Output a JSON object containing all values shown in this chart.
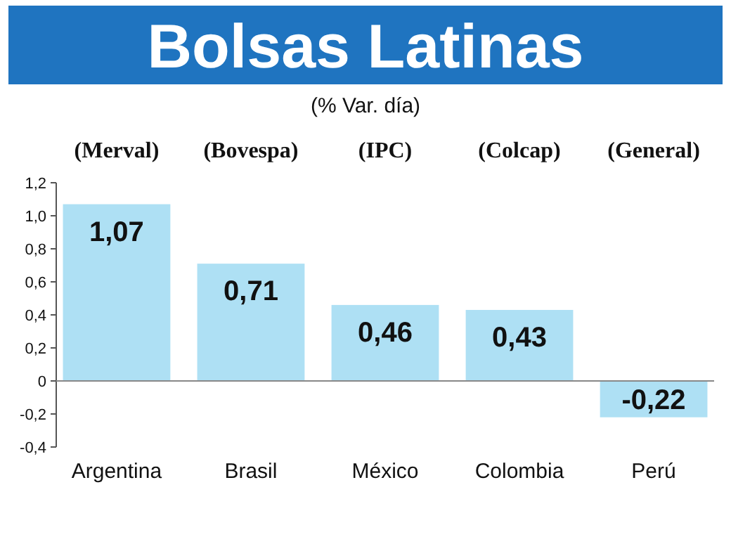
{
  "chart_data": {
    "type": "bar",
    "title": "Bolsas Latinas",
    "subtitle": "(% Var. día)",
    "categories": [
      "Argentina",
      "Brasil",
      "México",
      "Colombia",
      "Perú"
    ],
    "values": [
      1.07,
      0.71,
      0.46,
      0.43,
      -0.22
    ],
    "value_labels": [
      "1,07",
      "0,71",
      "0,46",
      "0,43",
      "-0,22"
    ],
    "color": "#aee0f4",
    "ylim": [
      -0.4,
      1.2
    ],
    "yticks": [
      {
        "value": -0.4,
        "label": "-0,4"
      },
      {
        "value": -0.2,
        "label": "-0,2"
      },
      {
        "value": 0,
        "label": "0"
      },
      {
        "value": 0.2,
        "label": "0,2"
      },
      {
        "value": 0.4,
        "label": "0,4"
      },
      {
        "value": 0.6,
        "label": "0,6"
      },
      {
        "value": 0.8,
        "label": "0,8"
      },
      {
        "value": 1,
        "label": "1,0"
      },
      {
        "value": 1.2,
        "label": "1,2"
      }
    ],
    "annotations": [
      "(Merval)",
      "(Bovespa)",
      "(IPC)",
      "(Colcap)",
      "(General)"
    ]
  }
}
